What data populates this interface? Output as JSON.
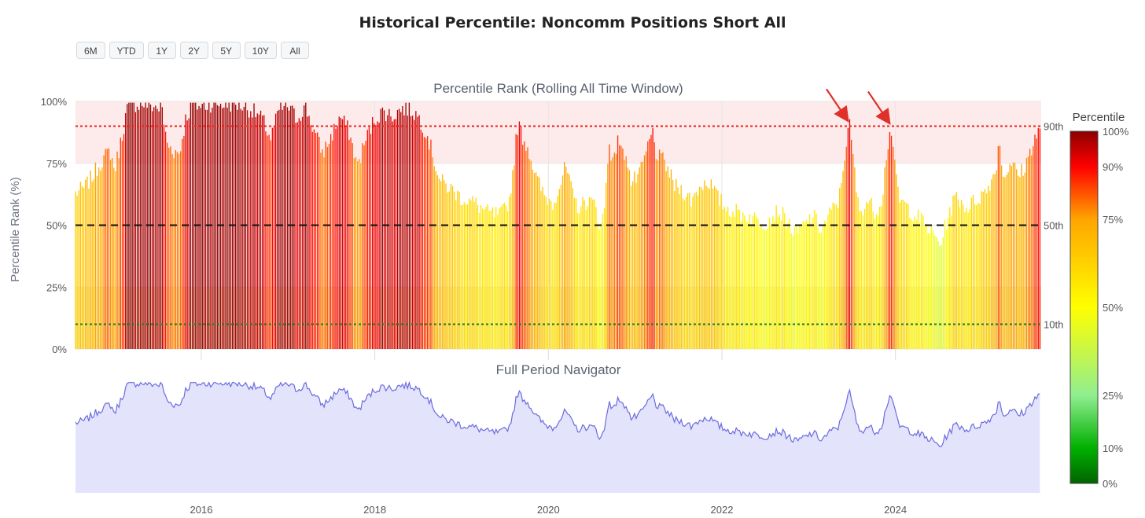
{
  "title": "Historical Percentile: Noncomm Positions Short All",
  "range_buttons": [
    "6M",
    "YTD",
    "1Y",
    "2Y",
    "5Y",
    "10Y",
    "All"
  ],
  "chart_data": {
    "type": "bar",
    "title": "Historical Percentile: Noncomm Positions Short All",
    "subplot_titles": [
      "Percentile Rank (Rolling All Time Window)",
      "Full Period Navigator"
    ],
    "ylabel": "Percentile Rank (%)",
    "ylim": [
      0,
      100
    ],
    "yticks": [
      "0%",
      "25%",
      "50%",
      "75%",
      "100%"
    ],
    "xlim": [
      2014.55,
      2025.68
    ],
    "xticks": [
      "2016",
      "2018",
      "2020",
      "2022",
      "2024"
    ],
    "reference_lines": [
      {
        "label": "90th",
        "value": 90,
        "color": "#e8231b",
        "style": "dotted"
      },
      {
        "label": "50th",
        "value": 50,
        "color": "#111111",
        "style": "dashed"
      },
      {
        "label": "10th",
        "value": 10,
        "color": "#1f7a1f",
        "style": "dotted"
      }
    ],
    "shaded_bands": [
      {
        "from": 75,
        "to": 100,
        "color": "#fdeaea"
      },
      {
        "from": 0,
        "to": 25,
        "color": "#f3f1d7"
      }
    ],
    "annotations": [
      {
        "type": "arrow",
        "x": 2023.45,
        "y": 91
      },
      {
        "type": "arrow",
        "x": 2023.93,
        "y": 90
      }
    ],
    "colorbar": {
      "title": "Percentile",
      "ticks": [
        "0%",
        "10%",
        "25%",
        "50%",
        "75%",
        "90%",
        "100%"
      ],
      "colors": [
        "#006400",
        "#00b000",
        "#90ee90",
        "#ffff00",
        "#ffa500",
        "#ff0000",
        "#8b0000"
      ]
    },
    "keypoints": [
      [
        2014.55,
        63
      ],
      [
        2014.65,
        65
      ],
      [
        2014.75,
        70
      ],
      [
        2014.85,
        76
      ],
      [
        2014.95,
        80
      ],
      [
        2015.0,
        72
      ],
      [
        2015.08,
        85
      ],
      [
        2015.15,
        98
      ],
      [
        2015.25,
        99
      ],
      [
        2015.35,
        99
      ],
      [
        2015.45,
        98
      ],
      [
        2015.55,
        97
      ],
      [
        2015.6,
        83
      ],
      [
        2015.68,
        80
      ],
      [
        2015.75,
        79
      ],
      [
        2015.82,
        93
      ],
      [
        2015.9,
        99
      ],
      [
        2016.0,
        98
      ],
      [
        2016.1,
        99
      ],
      [
        2016.2,
        99
      ],
      [
        2016.3,
        99
      ],
      [
        2016.4,
        99
      ],
      [
        2016.5,
        98
      ],
      [
        2016.6,
        96
      ],
      [
        2016.7,
        93
      ],
      [
        2016.8,
        85
      ],
      [
        2016.9,
        97
      ],
      [
        2017.0,
        98
      ],
      [
        2017.1,
        93
      ],
      [
        2017.2,
        98
      ],
      [
        2017.3,
        88
      ],
      [
        2017.4,
        79
      ],
      [
        2017.5,
        86
      ],
      [
        2017.6,
        94
      ],
      [
        2017.7,
        88
      ],
      [
        2017.8,
        74
      ],
      [
        2017.9,
        85
      ],
      [
        2018.0,
        93
      ],
      [
        2018.1,
        96
      ],
      [
        2018.2,
        94
      ],
      [
        2018.3,
        97
      ],
      [
        2018.4,
        97
      ],
      [
        2018.5,
        94
      ],
      [
        2018.6,
        87
      ],
      [
        2018.75,
        68
      ],
      [
        2018.9,
        64
      ],
      [
        2019.0,
        61
      ],
      [
        2019.15,
        59
      ],
      [
        2019.3,
        55
      ],
      [
        2019.45,
        54
      ],
      [
        2019.55,
        60
      ],
      [
        2019.6,
        75
      ],
      [
        2019.65,
        91
      ],
      [
        2019.7,
        86
      ],
      [
        2019.78,
        80
      ],
      [
        2019.85,
        70
      ],
      [
        2019.95,
        62
      ],
      [
        2020.05,
        59
      ],
      [
        2020.15,
        68
      ],
      [
        2020.2,
        74
      ],
      [
        2020.28,
        62
      ],
      [
        2020.35,
        57
      ],
      [
        2020.45,
        60
      ],
      [
        2020.55,
        58
      ],
      [
        2020.6,
        48
      ],
      [
        2020.65,
        58
      ],
      [
        2020.7,
        85
      ],
      [
        2020.75,
        73
      ],
      [
        2020.8,
        87
      ],
      [
        2020.85,
        78
      ],
      [
        2020.9,
        80
      ],
      [
        2020.95,
        67
      ],
      [
        2021.05,
        70
      ],
      [
        2021.15,
        82
      ],
      [
        2021.2,
        88
      ],
      [
        2021.25,
        78
      ],
      [
        2021.35,
        75
      ],
      [
        2021.45,
        66
      ],
      [
        2021.55,
        64
      ],
      [
        2021.65,
        60
      ],
      [
        2021.75,
        66
      ],
      [
        2021.85,
        68
      ],
      [
        2021.95,
        61
      ],
      [
        2022.05,
        57
      ],
      [
        2022.2,
        55
      ],
      [
        2022.35,
        53
      ],
      [
        2022.5,
        51
      ],
      [
        2022.65,
        56
      ],
      [
        2022.75,
        52
      ],
      [
        2022.85,
        46
      ],
      [
        2022.95,
        50
      ],
      [
        2023.05,
        54
      ],
      [
        2023.15,
        48
      ],
      [
        2023.25,
        55
      ],
      [
        2023.35,
        60
      ],
      [
        2023.42,
        80
      ],
      [
        2023.47,
        91
      ],
      [
        2023.52,
        75
      ],
      [
        2023.58,
        55
      ],
      [
        2023.68,
        60
      ],
      [
        2023.78,
        55
      ],
      [
        2023.85,
        62
      ],
      [
        2023.9,
        80
      ],
      [
        2023.95,
        90
      ],
      [
        2024.0,
        70
      ],
      [
        2024.05,
        60
      ],
      [
        2024.12,
        58
      ],
      [
        2024.2,
        55
      ],
      [
        2024.3,
        52
      ],
      [
        2024.42,
        47
      ],
      [
        2024.52,
        42
      ],
      [
        2024.6,
        53
      ],
      [
        2024.7,
        62
      ],
      [
        2024.82,
        57
      ],
      [
        2024.92,
        60
      ],
      [
        2025.05,
        64
      ],
      [
        2025.15,
        72
      ],
      [
        2025.2,
        84
      ],
      [
        2025.25,
        68
      ],
      [
        2025.32,
        76
      ],
      [
        2025.42,
        70
      ],
      [
        2025.5,
        74
      ],
      [
        2025.6,
        85
      ],
      [
        2025.68,
        89
      ]
    ]
  }
}
